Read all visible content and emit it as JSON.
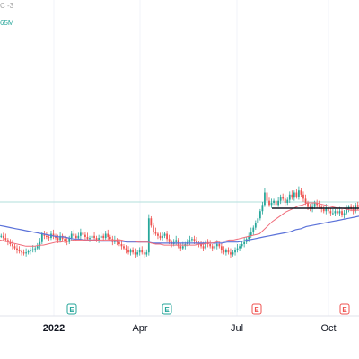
{
  "legend": {
    "ohlc_fragment": "C -3",
    "volume_fragment": "65M"
  },
  "colors": {
    "up": "#26a69a",
    "down": "#ef5350",
    "ma_short": "#f06c7a",
    "ma_long": "#5b72d9",
    "level": "#b2dfdb",
    "support": "#131722",
    "earnings_green": "#26a69a",
    "earnings_red": "#ef5350"
  },
  "chart_data": {
    "type": "candlestick",
    "x_ticks": [
      {
        "label": "2022",
        "bold": true,
        "pos": 0.15
      },
      {
        "label": "Apr",
        "bold": false,
        "pos": 0.39
      },
      {
        "label": "Jul",
        "bold": false,
        "pos": 0.66
      },
      {
        "label": "Oct",
        "bold": false,
        "pos": 0.915
      }
    ],
    "earnings": [
      {
        "symbol": "E",
        "type": "green",
        "pos": 0.2
      },
      {
        "symbol": "E",
        "type": "green",
        "pos": 0.465
      },
      {
        "symbol": "E",
        "type": "red",
        "pos": 0.715
      },
      {
        "symbol": "E",
        "type": "red",
        "pos": 0.96
      }
    ],
    "price_ylim": [
      0,
      100
    ],
    "closes": [
      28,
      26,
      24,
      22,
      20,
      18,
      16,
      14,
      13,
      12,
      11,
      12,
      13,
      14,
      15,
      16,
      18,
      22,
      30,
      28,
      27,
      26,
      30,
      28,
      26,
      24,
      28,
      25,
      23,
      22,
      26,
      30,
      28,
      26,
      28,
      31,
      29,
      27,
      25,
      26,
      28,
      26,
      24,
      26,
      28,
      26,
      30,
      27,
      25,
      22,
      24,
      22,
      20,
      18,
      16,
      14,
      12,
      14,
      12,
      10,
      12,
      14,
      12,
      10,
      12,
      45,
      38,
      32,
      30,
      28,
      26,
      28,
      30,
      25,
      22,
      20,
      22,
      24,
      18,
      16,
      18,
      20,
      22,
      24,
      25,
      23,
      21,
      20,
      18,
      16,
      22,
      20,
      18,
      16,
      18,
      20,
      18,
      14,
      12,
      14,
      12,
      10,
      12,
      14,
      16,
      18,
      20,
      22,
      25,
      28,
      32,
      36,
      40,
      45,
      52,
      58,
      70,
      62,
      58,
      60,
      62,
      58,
      62,
      66,
      64,
      60,
      63,
      68,
      65,
      70,
      66,
      72,
      68,
      64,
      60,
      56,
      54,
      56,
      60,
      58,
      56,
      54,
      52,
      55,
      52,
      50,
      50,
      52,
      50,
      52,
      48,
      50,
      54,
      56,
      54,
      52,
      58,
      56
    ],
    "ma_short": [
      24,
      23,
      22,
      21,
      20,
      19,
      18,
      18,
      18,
      19,
      19,
      20,
      21,
      22,
      22,
      23,
      23,
      24,
      24,
      24,
      24,
      24,
      24,
      24,
      24,
      24,
      24,
      24,
      24,
      23,
      23,
      23,
      22,
      22,
      22,
      21,
      20,
      20,
      19,
      19,
      19,
      19,
      19,
      19,
      19,
      19,
      20,
      20,
      21,
      21,
      22,
      23,
      23,
      24,
      24,
      25,
      26,
      27,
      28,
      29,
      30,
      34,
      38,
      42,
      45,
      48,
      51,
      53,
      55,
      57,
      58,
      60,
      60,
      60,
      59,
      58,
      57,
      56,
      55,
      55,
      54,
      53,
      53,
      53
    ],
    "ma_long": [
      38,
      37,
      36,
      35,
      34,
      33,
      32,
      31,
      30,
      29,
      28,
      27,
      27,
      26,
      25,
      25,
      24,
      24,
      24,
      23,
      23,
      23,
      23,
      23,
      22,
      22,
      22,
      22,
      22,
      21,
      21,
      21,
      21,
      21,
      21,
      21,
      21,
      21,
      21,
      21,
      21,
      21,
      21,
      22,
      22,
      22,
      23,
      24,
      25,
      26,
      27,
      28,
      29,
      30,
      31,
      32,
      34,
      35,
      37,
      38,
      39,
      40,
      41,
      42,
      43,
      44,
      45,
      46,
      47
    ]
  }
}
